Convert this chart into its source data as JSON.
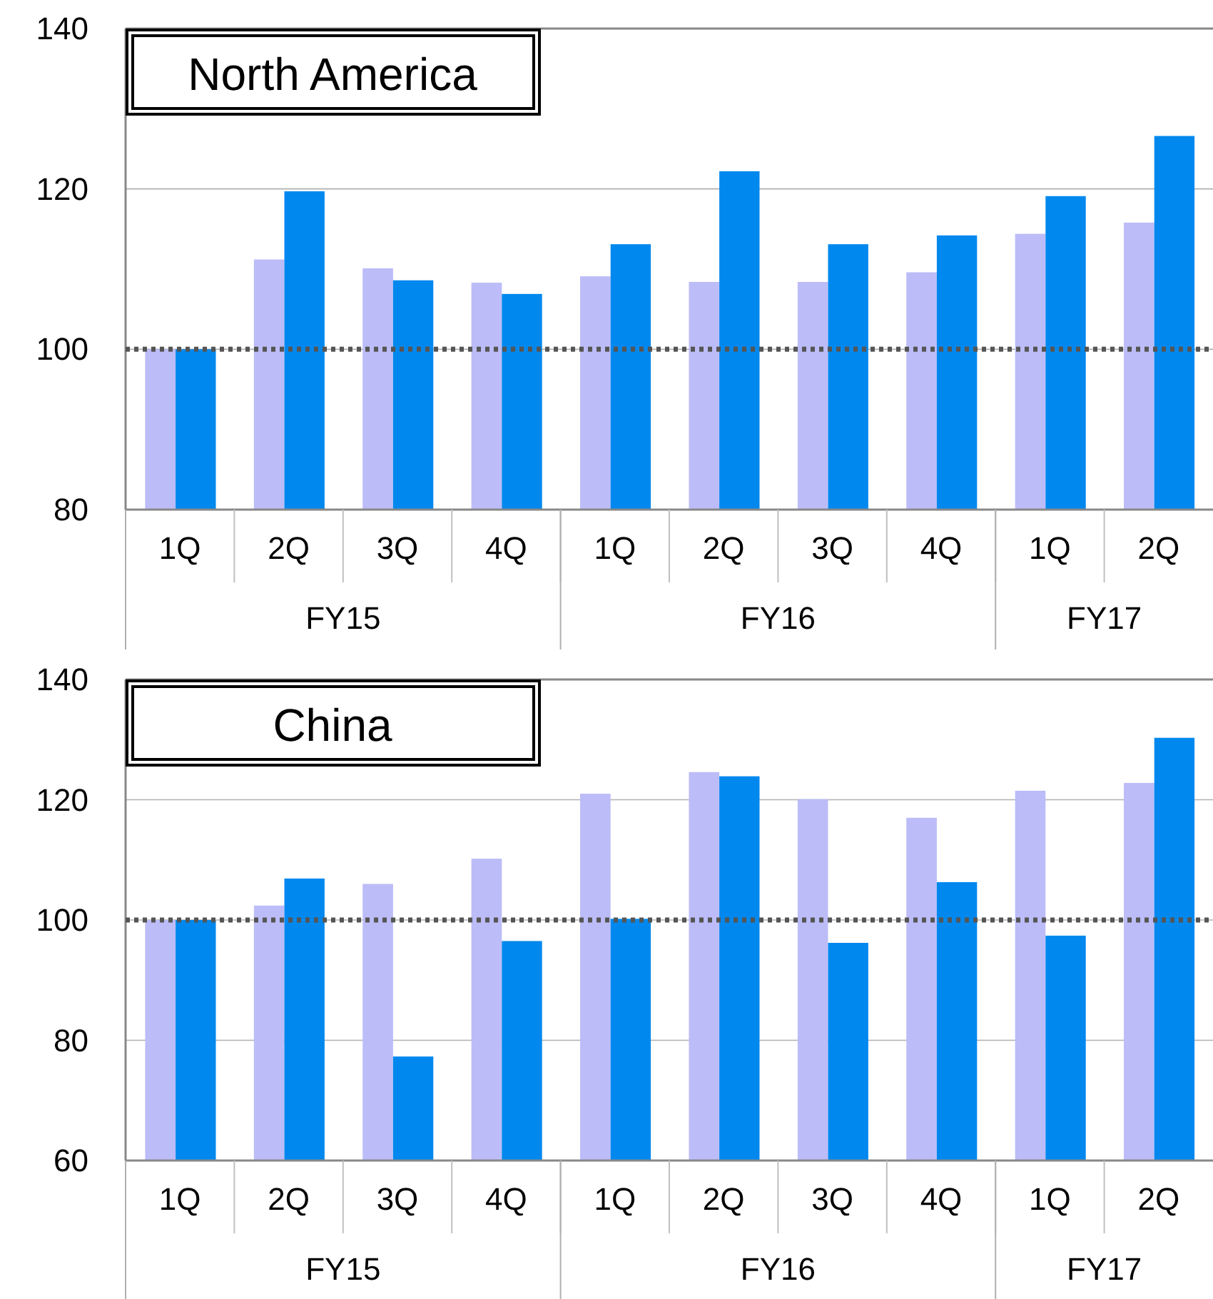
{
  "chart_data": [
    {
      "type": "bar",
      "title": "North America",
      "categories": [
        "1Q",
        "2Q",
        "3Q",
        "4Q",
        "1Q",
        "2Q",
        "3Q",
        "4Q",
        "1Q",
        "2Q"
      ],
      "annotations": [
        "FY15",
        "FY16",
        "FY17"
      ],
      "series": [
        {
          "color": "#bcbcf8",
          "values": [
            100,
            111.2,
            110.1,
            108.3,
            109.1,
            108.4,
            108.4,
            109.6,
            114.4,
            115.8
          ]
        },
        {
          "color": "#0088ee",
          "values": [
            100,
            119.7,
            108.6,
            106.9,
            113.1,
            122.2,
            113.1,
            114.2,
            119.1,
            126.6
          ]
        }
      ],
      "ylim": [
        80,
        140
      ],
      "yticks": [
        80,
        100,
        120,
        140
      ],
      "grid": "y",
      "ref_lines": [
        {
          "axis": "y",
          "value": 100,
          "color": "#555555",
          "line_style": "dotted"
        }
      ]
    },
    {
      "type": "bar",
      "title": "China",
      "categories": [
        "1Q",
        "2Q",
        "3Q",
        "4Q",
        "1Q",
        "2Q",
        "3Q",
        "4Q",
        "1Q",
        "2Q"
      ],
      "annotations": [
        "FY15",
        "FY16",
        "FY17"
      ],
      "series": [
        {
          "color": "#bcbcf8",
          "values": [
            100,
            102.4,
            106,
            110.2,
            121,
            124.6,
            120.1,
            117,
            121.5,
            122.8
          ]
        },
        {
          "color": "#0088ee",
          "values": [
            100,
            106.9,
            77.3,
            96.5,
            100.2,
            123.9,
            96.2,
            106.3,
            97.4,
            130.3
          ]
        }
      ],
      "ylim": [
        60,
        140
      ],
      "yticks": [
        60,
        80,
        100,
        120,
        140
      ],
      "grid": "y",
      "ref_lines": [
        {
          "axis": "y",
          "value": 100,
          "color": "#555555",
          "line_style": "dotted"
        }
      ]
    }
  ]
}
